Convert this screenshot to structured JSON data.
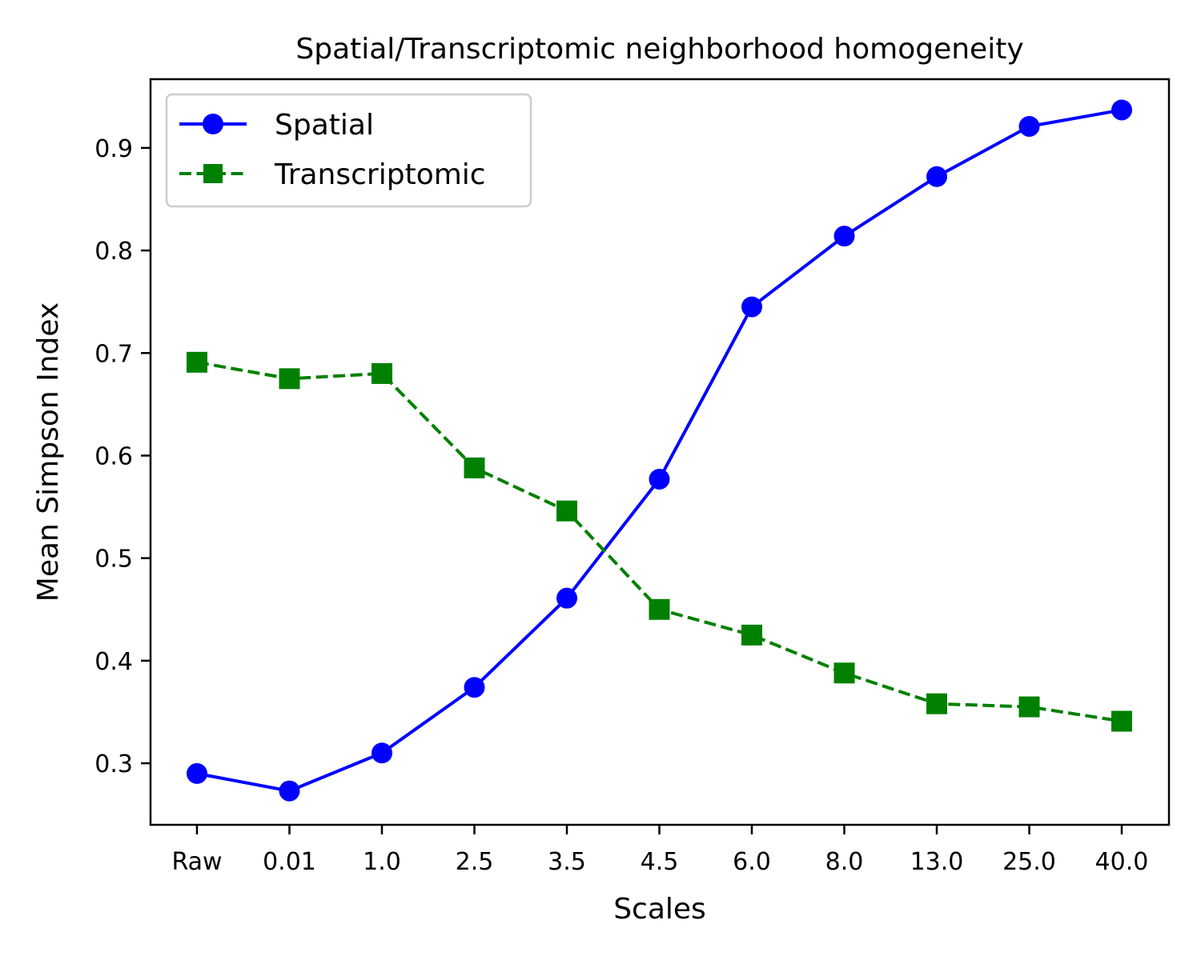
{
  "chart_data": {
    "type": "line",
    "title": "Spatial/Transcriptomic neighborhood homogeneity",
    "xlabel": "Scales",
    "ylabel": "Mean Simpson Index",
    "categories": [
      "Raw",
      "0.01",
      "1.0",
      "2.5",
      "3.5",
      "4.5",
      "6.0",
      "8.0",
      "13.0",
      "25.0",
      "40.0"
    ],
    "ylim": [
      0.24,
      0.967
    ],
    "yticks": [
      0.3,
      0.4,
      0.5,
      0.6,
      0.7,
      0.8,
      0.9
    ],
    "ytick_labels": [
      "0.3",
      "0.4",
      "0.5",
      "0.6",
      "0.7",
      "0.8",
      "0.9"
    ],
    "grid": false,
    "legend_position": "top-left",
    "series": [
      {
        "name": "Spatial",
        "color": "#0000ff",
        "linestyle": "solid",
        "marker": "circle",
        "values": [
          0.29,
          0.273,
          0.31,
          0.374,
          0.461,
          0.577,
          0.745,
          0.814,
          0.872,
          0.921,
          0.937
        ]
      },
      {
        "name": "Transcriptomic",
        "color": "#008000",
        "linestyle": "dashed",
        "marker": "square",
        "values": [
          0.691,
          0.675,
          0.68,
          0.588,
          0.546,
          0.45,
          0.425,
          0.388,
          0.358,
          0.355,
          0.341
        ]
      }
    ]
  }
}
